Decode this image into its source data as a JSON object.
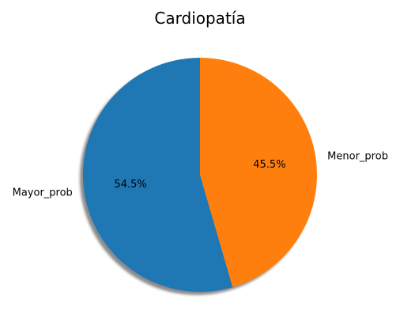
{
  "chart_data": {
    "type": "pie",
    "title": "Cardiopatía",
    "labels": [
      "Mayor_prob",
      "Menor_prob"
    ],
    "values": [
      54.5,
      45.5
    ],
    "percent_labels": [
      "54.5%",
      "45.5%"
    ],
    "colors": [
      "#1f77b4",
      "#ff7f0e"
    ],
    "start_angle_deg": 90,
    "direction": "counterclockwise",
    "shadow": true
  }
}
